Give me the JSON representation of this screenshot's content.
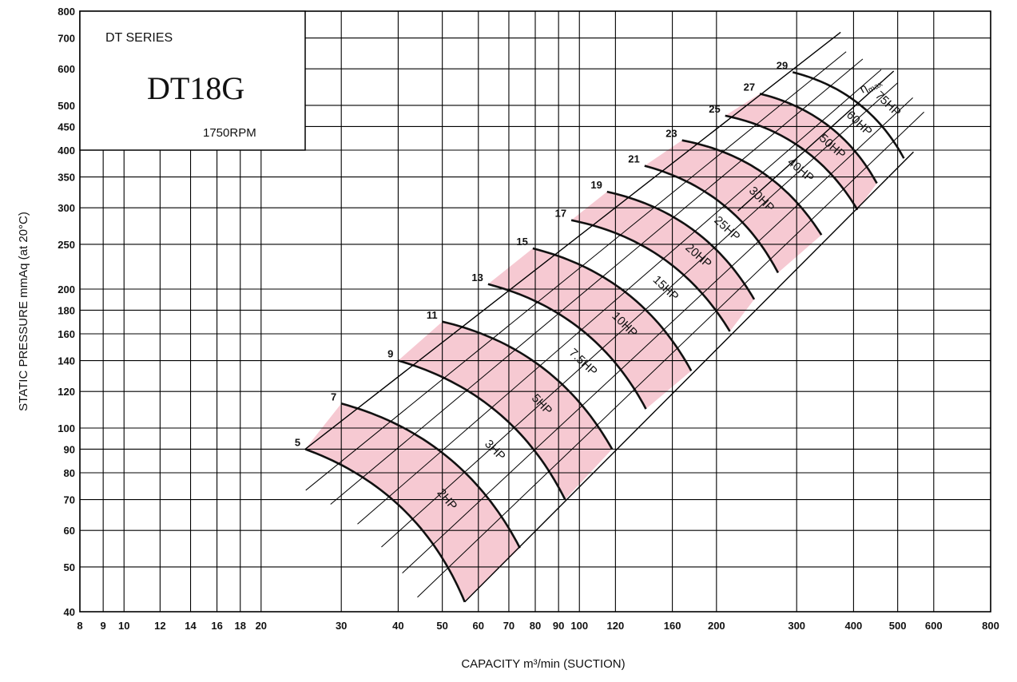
{
  "chart_data": {
    "type": "line",
    "series_label": "DT SERIES",
    "model": "DT18G",
    "rpm_label": "1750RPM",
    "xlabel": "CAPACITY m³/min (SUCTION)",
    "ylabel": "STATIC PRESSURE mmAq (at 20°C)",
    "xscale": "log",
    "yscale": "log",
    "xlim": [
      8,
      800
    ],
    "ylim": [
      40,
      800
    ],
    "grid": true,
    "x_ticks": [
      8,
      9,
      10,
      12,
      14,
      16,
      18,
      20,
      30,
      40,
      50,
      60,
      70,
      80,
      90,
      100,
      120,
      160,
      200,
      300,
      400,
      500,
      600,
      800
    ],
    "x_tick_labels": [
      "8",
      "9",
      "10",
      "12",
      "14",
      "16",
      "18",
      "20",
      "30",
      "40",
      "50",
      "60",
      "70",
      "80",
      "90",
      "100",
      "120",
      "160",
      "200",
      "300",
      "400",
      "500",
      "600",
      "800"
    ],
    "y_ticks": [
      40,
      50,
      60,
      70,
      80,
      90,
      100,
      120,
      140,
      160,
      180,
      200,
      250,
      300,
      350,
      400,
      450,
      500,
      600,
      700,
      800
    ],
    "y_tick_labels": [
      "40",
      "50",
      "60",
      "70",
      "80",
      "90",
      "100",
      "120",
      "140",
      "160",
      "180",
      "200",
      "250",
      "300",
      "350",
      "400",
      "450",
      "500",
      "600",
      "700",
      "800"
    ],
    "speed_curves": [
      {
        "label": "5",
        "points": [
          [
            25,
            90
          ],
          [
            56,
            42
          ]
        ]
      },
      {
        "label": "7",
        "points": [
          [
            30,
            113
          ],
          [
            74,
            55
          ]
        ]
      },
      {
        "label": "9",
        "points": [
          [
            40,
            140
          ],
          [
            93,
            70
          ]
        ]
      },
      {
        "label": "11",
        "points": [
          [
            50,
            170
          ],
          [
            118,
            90
          ]
        ]
      },
      {
        "label": "13",
        "points": [
          [
            63,
            205
          ],
          [
            140,
            110
          ]
        ]
      },
      {
        "label": "15",
        "points": [
          [
            79,
            245
          ],
          [
            176,
            133
          ]
        ]
      },
      {
        "label": "17",
        "points": [
          [
            96,
            282
          ],
          [
            214,
            162
          ]
        ]
      },
      {
        "label": "19",
        "points": [
          [
            115,
            325
          ],
          [
            242,
            190
          ]
        ]
      },
      {
        "label": "21",
        "points": [
          [
            139,
            370
          ],
          [
            273,
            217
          ]
        ]
      },
      {
        "label": "23",
        "points": [
          [
            168,
            420
          ],
          [
            340,
            262
          ]
        ]
      },
      {
        "label": "25",
        "points": [
          [
            209,
            475
          ],
          [
            408,
            297
          ]
        ]
      },
      {
        "label": "27",
        "points": [
          [
            249,
            530
          ],
          [
            450,
            339
          ]
        ]
      },
      {
        "label": "29",
        "points": [
          [
            294,
            590
          ],
          [
            516,
            384
          ]
        ]
      }
    ],
    "bands": [
      {
        "label": "2HP",
        "shaded": true,
        "from": 0,
        "to": 1
      },
      {
        "label": "3HP",
        "shaded": false,
        "from": 1,
        "to": 2
      },
      {
        "label": "5HP",
        "shaded": true,
        "from": 2,
        "to": 3
      },
      {
        "label": "7.5HP",
        "shaded": false,
        "from": 3,
        "to": 4
      },
      {
        "label": "10HP",
        "shaded": true,
        "from": 4,
        "to": 5
      },
      {
        "label": "15HP",
        "shaded": false,
        "from": 5,
        "to": 6
      },
      {
        "label": "20HP",
        "shaded": true,
        "from": 6,
        "to": 7
      },
      {
        "label": "25HP",
        "shaded": false,
        "from": 7,
        "to": 8
      },
      {
        "label": "30HP",
        "shaded": true,
        "from": 8,
        "to": 9
      },
      {
        "label": "40HP",
        "shaded": false,
        "from": 9,
        "to": 10
      },
      {
        "label": "50HP",
        "shaded": true,
        "from": 10,
        "to": 11
      },
      {
        "label": "60HP",
        "shaded": false,
        "from": 11,
        "to": 12
      },
      {
        "label": "75HP",
        "shaded": true,
        "from": 12,
        "to": 12
      }
    ],
    "eta_max_label": "η",
    "eta_max_sub": "max",
    "colors": {
      "band_fill": "#f6c9d2",
      "line": "#111111",
      "grid": "#000000",
      "background": "#ffffff"
    }
  }
}
